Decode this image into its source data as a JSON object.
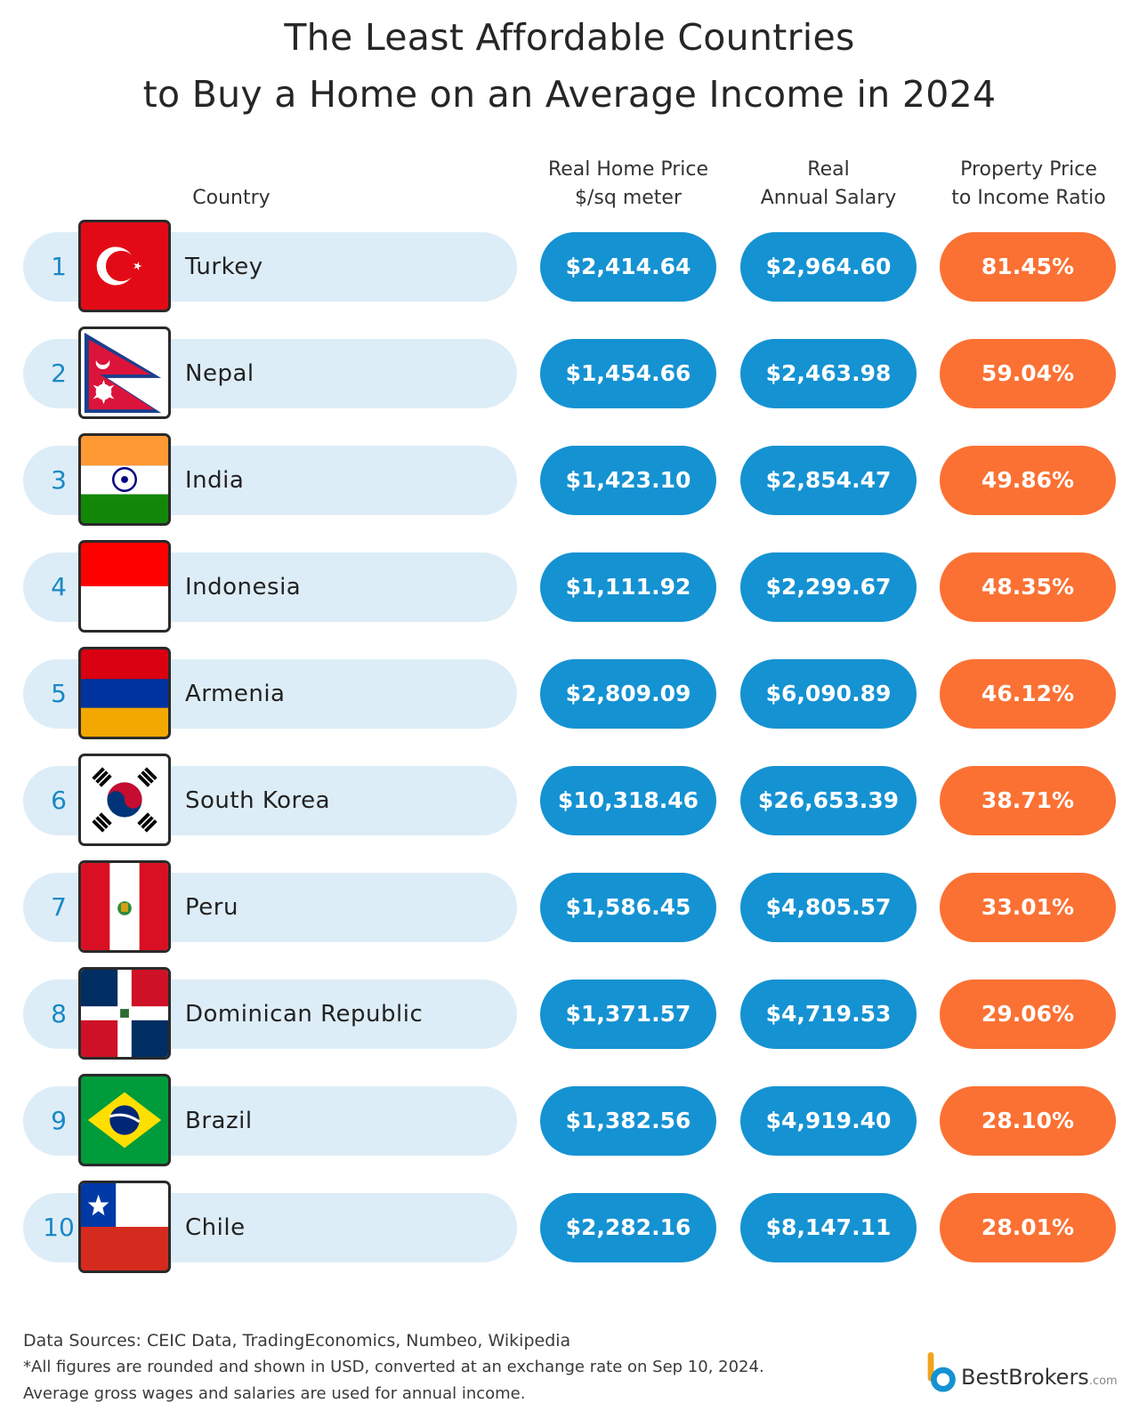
{
  "title_line1": "The Least Affordable Countries",
  "title_line2": "to Buy a Home on an Average Income in 2024",
  "headers": {
    "country": "Country",
    "price_l1": "Real Home Price",
    "price_l2": "$/sq meter",
    "salary_l1": "Real",
    "salary_l2": "Annual Salary",
    "ratio_l1": "Property Price",
    "ratio_l2": "to Income Ratio"
  },
  "colors": {
    "blue": "#1592d2",
    "orange": "#fb7133",
    "pill": "#ddedf7",
    "rank": "#1a88c6"
  },
  "chart_data": {
    "type": "table",
    "columns": [
      "Country",
      "Real Home Price $/sq meter",
      "Real Annual Salary",
      "Property Price to Income Ratio"
    ],
    "rows": [
      {
        "rank": "1",
        "country": "Turkey",
        "flag": "turkey-flag-icon",
        "price": "$2,414.64",
        "salary": "$2,964.60",
        "ratio": "81.45%"
      },
      {
        "rank": "2",
        "country": "Nepal",
        "flag": "nepal-flag-icon",
        "price": "$1,454.66",
        "salary": "$2,463.98",
        "ratio": "59.04%"
      },
      {
        "rank": "3",
        "country": "India",
        "flag": "india-flag-icon",
        "price": "$1,423.10",
        "salary": "$2,854.47",
        "ratio": "49.86%"
      },
      {
        "rank": "4",
        "country": "Indonesia",
        "flag": "indonesia-flag-icon",
        "price": "$1,111.92",
        "salary": "$2,299.67",
        "ratio": "48.35%"
      },
      {
        "rank": "5",
        "country": "Armenia",
        "flag": "armenia-flag-icon",
        "price": "$2,809.09",
        "salary": "$6,090.89",
        "ratio": "46.12%"
      },
      {
        "rank": "6",
        "country": "South Korea",
        "flag": "south-korea-flag-icon",
        "price": "$10,318.46",
        "salary": "$26,653.39",
        "ratio": "38.71%"
      },
      {
        "rank": "7",
        "country": "Peru",
        "flag": "peru-flag-icon",
        "price": "$1,586.45",
        "salary": "$4,805.57",
        "ratio": "33.01%"
      },
      {
        "rank": "8",
        "country": "Dominican Republic",
        "flag": "dominican-republic-flag-icon",
        "price": "$1,371.57",
        "salary": "$4,719.53",
        "ratio": "29.06%"
      },
      {
        "rank": "9",
        "country": "Brazil",
        "flag": "brazil-flag-icon",
        "price": "$1,382.56",
        "salary": "$4,919.40",
        "ratio": "28.10%"
      },
      {
        "rank": "10",
        "country": "Chile",
        "flag": "chile-flag-icon",
        "price": "$2,282.16",
        "salary": "$8,147.11",
        "ratio": "28.01%"
      }
    ]
  },
  "footer": {
    "line1": "Data Sources: CEIC Data, TradingEconomics, Numbeo, Wikipedia",
    "line2": "*All figures are rounded and shown in USD, converted at an exchange rate on Sep 10, 2024.",
    "line3": "Average gross wages and salaries are used for annual income."
  },
  "brand": {
    "name": "BestBrokers",
    "suffix": ".com",
    "logo": "bestbrokers-logo-icon"
  }
}
